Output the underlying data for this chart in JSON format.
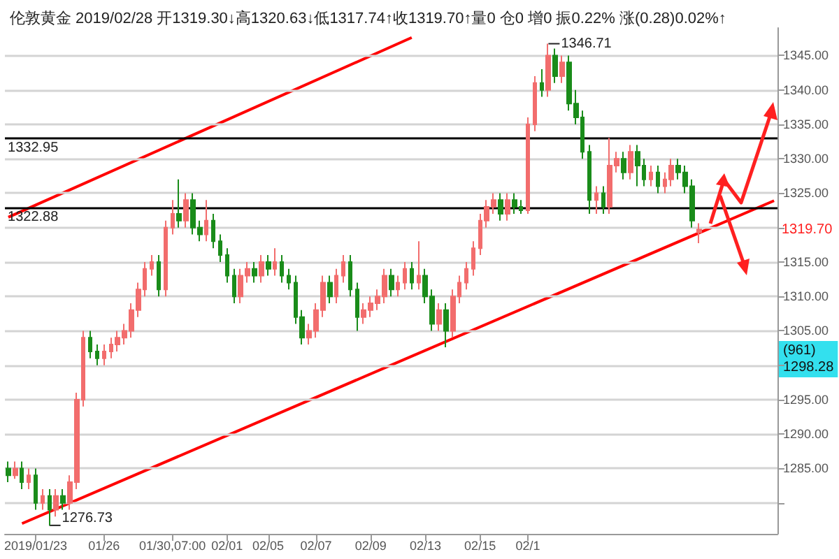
{
  "chart_data": {
    "type": "candlestick",
    "title": "伦敦黄金 2019/02/28 开1319.30↓高1320.63↓低1317.74↑收1319.70↑量0 仓0 增0 振0.22% 涨(0.28)0.02%↑",
    "categories": [
      null,
      null,
      null,
      null,
      "2019/01/23",
      null,
      null,
      null,
      null,
      null,
      null,
      null,
      null,
      null,
      "01/26",
      null,
      null,
      null,
      null,
      null,
      null,
      null,
      null,
      null,
      "01/30,07:00",
      null,
      null,
      null,
      null,
      null,
      null,
      null,
      "02/01",
      null,
      null,
      null,
      null,
      null,
      "02/05",
      null,
      null,
      null,
      null,
      null,
      null,
      "02/07",
      null,
      null,
      null,
      null,
      null,
      null,
      null,
      "02/09",
      null,
      null,
      null,
      null,
      null,
      null,
      null,
      "02/13",
      null,
      null,
      null,
      null,
      null,
      null,
      null,
      "02/15",
      null,
      null,
      null,
      null,
      null,
      null,
      "02/1",
      null,
      null,
      null,
      null,
      null,
      null,
      null,
      null,
      null,
      null,
      null,
      null,
      null,
      null,
      null,
      null,
      null,
      null,
      null,
      null,
      null,
      null,
      null,
      null,
      null,
      null,
      null,
      null,
      null,
      null,
      null,
      null,
      null,
      null,
      null,
      null
    ],
    "series": [
      {
        "ohlc": [
          [
            1285,
            1286,
            1283,
            1284
          ],
          [
            1284,
            1286,
            1283.5,
            1285
          ],
          [
            1285,
            1286,
            1282,
            1283
          ],
          [
            1283,
            1285,
            1282,
            1284
          ],
          [
            1284,
            1285,
            1279,
            1280
          ],
          [
            1280,
            1282,
            1279,
            1281
          ],
          [
            1281,
            1282,
            1276.73,
            1279
          ],
          [
            1279,
            1282,
            1278,
            1281
          ],
          [
            1281,
            1282,
            1279,
            1280
          ],
          [
            1280,
            1284,
            1279,
            1283
          ],
          [
            1283,
            1296,
            1282,
            1295
          ],
          [
            1295,
            1305,
            1294,
            1304
          ],
          [
            1304,
            1305,
            1301,
            1302
          ],
          [
            1302,
            1303,
            1300,
            1301
          ],
          [
            1301,
            1303,
            1300,
            1302
          ],
          [
            1302,
            1304,
            1301,
            1303
          ],
          [
            1303,
            1305,
            1302,
            1304
          ],
          [
            1304,
            1306,
            1303,
            1305
          ],
          [
            1305,
            1309,
            1304,
            1308
          ],
          [
            1308,
            1312,
            1307,
            1311
          ],
          [
            1311,
            1315,
            1310,
            1314
          ],
          [
            1314,
            1316,
            1313,
            1315
          ],
          [
            1315,
            1316,
            1310,
            1311
          ],
          [
            1311,
            1321,
            1310,
            1320
          ],
          [
            1320,
            1324,
            1319,
            1322
          ],
          [
            1322,
            1327,
            1320,
            1321
          ],
          [
            1321,
            1325,
            1320,
            1324
          ],
          [
            1324,
            1325,
            1319,
            1320
          ],
          [
            1320,
            1321,
            1318,
            1319
          ],
          [
            1319,
            1324,
            1318,
            1321
          ],
          [
            1321,
            1322,
            1317,
            1318
          ],
          [
            1318,
            1319,
            1315,
            1316
          ],
          [
            1316,
            1317,
            1312,
            1313
          ],
          [
            1313,
            1314,
            1309,
            1310
          ],
          [
            1310,
            1314,
            1309,
            1313
          ],
          [
            1313,
            1315,
            1312,
            1314
          ],
          [
            1314,
            1315,
            1312,
            1313
          ],
          [
            1313,
            1316,
            1312,
            1315
          ],
          [
            1315,
            1316,
            1313,
            1314
          ],
          [
            1314,
            1317,
            1313,
            1315
          ],
          [
            1315,
            1316,
            1312,
            1313
          ],
          [
            1313,
            1314,
            1311,
            1312
          ],
          [
            1312,
            1313,
            1306,
            1307
          ],
          [
            1307,
            1308,
            1303,
            1304
          ],
          [
            1304,
            1306,
            1303,
            1305
          ],
          [
            1305,
            1309,
            1304,
            1308
          ],
          [
            1308,
            1313,
            1307,
            1312
          ],
          [
            1312,
            1313,
            1309,
            1310
          ],
          [
            1310,
            1314,
            1309,
            1313
          ],
          [
            1313,
            1316,
            1312,
            1315
          ],
          [
            1315,
            1316,
            1310,
            1311
          ],
          [
            1311,
            1312,
            1305,
            1307
          ],
          [
            1307,
            1309,
            1306,
            1308
          ],
          [
            1308,
            1310,
            1307,
            1309
          ],
          [
            1309,
            1311,
            1308,
            1310
          ],
          [
            1310,
            1314,
            1309,
            1313
          ],
          [
            1313,
            1314,
            1310,
            1311
          ],
          [
            1311,
            1313,
            1310,
            1312
          ],
          [
            1312,
            1315,
            1311,
            1314
          ],
          [
            1314,
            1315,
            1311,
            1312
          ],
          [
            1312,
            1318,
            1311,
            1313
          ],
          [
            1313,
            1314,
            1309,
            1310
          ],
          [
            1310,
            1311,
            1305,
            1306
          ],
          [
            1306,
            1309,
            1305,
            1308
          ],
          [
            1308,
            1309,
            1302.6,
            1305
          ],
          [
            1305,
            1311,
            1304,
            1310
          ],
          [
            1310,
            1313,
            1309,
            1312
          ],
          [
            1312,
            1315,
            1311,
            1314
          ],
          [
            1314,
            1318,
            1313,
            1317
          ],
          [
            1317,
            1322,
            1316,
            1321
          ],
          [
            1321,
            1324,
            1320,
            1323
          ],
          [
            1323,
            1325,
            1322,
            1324
          ],
          [
            1324,
            1325,
            1321,
            1322
          ],
          [
            1322,
            1325,
            1321,
            1324
          ],
          [
            1324,
            1325,
            1322,
            1323
          ],
          [
            1323,
            1324,
            1322,
            1322.5
          ],
          [
            1322.5,
            1336,
            1322,
            1335
          ],
          [
            1335,
            1342,
            1334,
            1341
          ],
          [
            1341,
            1343,
            1339,
            1340
          ],
          [
            1340,
            1346.71,
            1339,
            1345
          ],
          [
            1345,
            1346,
            1341,
            1342
          ],
          [
            1342,
            1345,
            1341,
            1344
          ],
          [
            1344,
            1345,
            1337,
            1338
          ],
          [
            1338,
            1340,
            1335,
            1336
          ],
          [
            1336,
            1337,
            1330,
            1331
          ],
          [
            1331,
            1332,
            1322,
            1324
          ],
          [
            1324,
            1326,
            1322,
            1325
          ],
          [
            1325,
            1326,
            1322,
            1323
          ],
          [
            1323,
            1333,
            1322,
            1329
          ],
          [
            1329,
            1331,
            1328,
            1330
          ],
          [
            1330,
            1331,
            1327,
            1328
          ],
          [
            1328,
            1332,
            1327,
            1331
          ],
          [
            1331,
            1332,
            1326,
            1329
          ],
          [
            1329,
            1330,
            1326,
            1327
          ],
          [
            1327,
            1329,
            1326,
            1328
          ],
          [
            1328,
            1329,
            1325,
            1326
          ],
          [
            1326,
            1328,
            1325,
            1327
          ],
          [
            1327,
            1330,
            1326,
            1329
          ],
          [
            1329,
            1330,
            1327,
            1328
          ],
          [
            1328,
            1329,
            1325,
            1326
          ],
          [
            1326,
            1327,
            1320,
            1321
          ],
          [
            1319.3,
            1320.63,
            1317.74,
            1319.7
          ],
          null,
          null,
          null,
          null,
          null,
          null,
          null,
          null,
          null,
          null,
          null
        ],
        "colors": [
          "#1a8c1a",
          "#f26d6d",
          "#1a8c1a",
          "#f26d6d",
          "#1a8c1a",
          "#f26d6d",
          "#1a8c1a",
          "#f26d6d",
          "#1a8c1a",
          "#f26d6d",
          "#f26d6d",
          "#f26d6d",
          "#1a8c1a",
          "#1a8c1a",
          "#f26d6d",
          "#f26d6d",
          "#f26d6d",
          "#f26d6d",
          "#f26d6d",
          "#f26d6d",
          "#f26d6d",
          "#f26d6d",
          "#1a8c1a",
          "#f26d6d",
          "#f26d6d",
          "#1a8c1a",
          "#f26d6d",
          "#1a8c1a",
          "#1a8c1a",
          "#f26d6d",
          "#1a8c1a",
          "#1a8c1a",
          "#1a8c1a",
          "#1a8c1a",
          "#f26d6d",
          "#f26d6d",
          "#1a8c1a",
          "#f26d6d",
          "#1a8c1a",
          "#f26d6d",
          "#1a8c1a",
          "#1a8c1a",
          "#1a8c1a",
          "#1a8c1a",
          "#f26d6d",
          "#f26d6d",
          "#f26d6d",
          "#1a8c1a",
          "#f26d6d",
          "#f26d6d",
          "#1a8c1a",
          "#1a8c1a",
          "#f26d6d",
          "#f26d6d",
          "#f26d6d",
          "#f26d6d",
          "#1a8c1a",
          "#f26d6d",
          "#f26d6d",
          "#1a8c1a",
          "#f26d6d",
          "#1a8c1a",
          "#1a8c1a",
          "#f26d6d",
          "#1a8c1a",
          "#f26d6d",
          "#f26d6d",
          "#f26d6d",
          "#f26d6d",
          "#f26d6d",
          "#f26d6d",
          "#f26d6d",
          "#1a8c1a",
          "#f26d6d",
          "#1a8c1a",
          "#1a8c1a",
          "#f26d6d",
          "#f26d6d",
          "#1a8c1a",
          "#f26d6d",
          "#1a8c1a",
          "#f26d6d",
          "#1a8c1a",
          "#1a8c1a",
          "#1a8c1a",
          "#1a8c1a",
          "#f26d6d",
          "#1a8c1a",
          "#f26d6d",
          "#f26d6d",
          "#1a8c1a",
          "#f26d6d",
          "#1a8c1a",
          "#1a8c1a",
          "#f26d6d",
          "#1a8c1a",
          "#f26d6d",
          "#f26d6d",
          "#1a8c1a",
          "#1a8c1a",
          "#1a8c1a",
          "#f26d6d",
          null,
          null,
          null,
          null,
          null,
          null,
          null,
          null,
          null,
          null,
          null
        ]
      },
      {
        "type": "line",
        "color": "#ff0000",
        "values": [
          1321.5,
          null,
          null,
          null,
          null,
          null,
          null,
          null,
          null,
          null,
          null,
          null,
          null,
          null,
          null,
          null,
          null,
          null,
          null,
          null,
          null,
          null,
          null,
          null,
          null,
          null,
          null,
          null,
          null,
          null,
          null,
          null,
          null,
          null,
          null,
          null,
          null,
          null,
          null,
          null,
          null,
          null,
          null,
          null,
          null,
          null,
          null,
          null,
          null,
          null,
          null,
          null,
          null,
          null,
          null,
          null,
          null,
          null,
          null,
          1347.6,
          null,
          null,
          null,
          null,
          null,
          null,
          null,
          null,
          null,
          null,
          null,
          null,
          null,
          null,
          null,
          null,
          null,
          null,
          null,
          null,
          null,
          null,
          null,
          null,
          null,
          null,
          null,
          null,
          null,
          null,
          null,
          null,
          null,
          null,
          null,
          null,
          null,
          null,
          null,
          null,
          null,
          null,
          null,
          null,
          null,
          null,
          null,
          null,
          null,
          null,
          null,
          null,
          null
        ]
      },
      {
        "type": "line",
        "color": "#ff0000",
        "values": [
          null,
          null,
          1277.0,
          null,
          null,
          null,
          null,
          null,
          null,
          null,
          null,
          null,
          null,
          null,
          null,
          null,
          null,
          null,
          null,
          null,
          null,
          null,
          null,
          null,
          null,
          null,
          null,
          null,
          null,
          null,
          null,
          null,
          null,
          null,
          null,
          null,
          null,
          null,
          null,
          null,
          null,
          null,
          null,
          null,
          null,
          null,
          null,
          null,
          null,
          null,
          null,
          null,
          null,
          null,
          null,
          null,
          null,
          null,
          null,
          null,
          null,
          null,
          null,
          null,
          null,
          null,
          null,
          null,
          null,
          null,
          null,
          null,
          null,
          null,
          null,
          null,
          null,
          null,
          null,
          null,
          null,
          null,
          null,
          null,
          null,
          null,
          null,
          null,
          null,
          null,
          null,
          null,
          null,
          null,
          null,
          null,
          null,
          null,
          null,
          null,
          null,
          null,
          null,
          null,
          null,
          null,
          null,
          null,
          null,
          null,
          null,
          null,
          1323.9
        ]
      }
    ],
    "ylim": [
      1275.5,
      1349
    ],
    "yticks": [
      {
        "value": 1280,
        "label": null
      },
      {
        "value": 1285,
        "label": "1285.00"
      },
      {
        "value": 1290,
        "label": "1290.00"
      },
      {
        "value": 1295,
        "label": "1295.00"
      },
      {
        "value": 1300,
        "label": null
      },
      {
        "value": 1305,
        "label": "1305.00"
      },
      {
        "value": 1310,
        "label": "1310.00"
      },
      {
        "value": 1315,
        "label": "1315.00"
      },
      {
        "value": 1320,
        "label": null
      },
      {
        "value": 1325,
        "label": "1325.00"
      },
      {
        "value": 1330,
        "label": "1330.00"
      },
      {
        "value": 1335,
        "label": "1335.00"
      },
      {
        "value": 1340,
        "label": "1340.00"
      },
      {
        "value": 1345,
        "label": "1345.00"
      }
    ],
    "grid": "y",
    "marker": "none",
    "ref_lines": [
      {
        "axis": "y",
        "value": 1332.95,
        "label": "1332.95",
        "color": "#000000"
      },
      {
        "axis": "y",
        "value": 1322.88,
        "label": "1322.88",
        "color": "#000000"
      }
    ],
    "annotations": [
      "1346.71",
      "1276.73",
      "1319.70",
      "(961)",
      "1298.28"
    ]
  }
}
